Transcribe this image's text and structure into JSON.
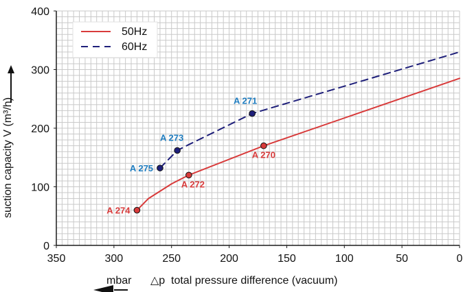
{
  "chart_data": {
    "type": "line",
    "xlim": [
      350,
      0
    ],
    "ylim": [
      0,
      400
    ],
    "x_ticks": [
      350,
      300,
      250,
      200,
      150,
      100,
      50,
      0
    ],
    "y_ticks": [
      0,
      100,
      200,
      300,
      400
    ],
    "grid": true,
    "legend_placement": "top-left",
    "series": [
      {
        "name": "50Hz",
        "style": "solid",
        "color": "#d83a3a",
        "points": [
          [
            280,
            60
          ],
          [
            270,
            80
          ],
          [
            250,
            105
          ],
          [
            235,
            120
          ],
          [
            170,
            170
          ],
          [
            0,
            285
          ]
        ]
      },
      {
        "name": "60Hz",
        "style": "dashed",
        "color": "#1e1f7a",
        "points": [
          [
            260,
            132
          ],
          [
            245,
            162
          ],
          [
            235,
            172
          ],
          [
            180,
            225
          ],
          [
            0,
            330
          ]
        ]
      }
    ],
    "markers": [
      {
        "label": "A 270",
        "x": 170,
        "y": 170,
        "color": "#d83a3a"
      },
      {
        "label": "A 271",
        "x": 180,
        "y": 225,
        "color": "#1e1f7a",
        "label_color": "#1f7dc0"
      },
      {
        "label": "A 272",
        "x": 235,
        "y": 120,
        "color": "#d83a3a"
      },
      {
        "label": "A 273",
        "x": 245,
        "y": 162,
        "color": "#1e1f7a",
        "label_color": "#1f7dc0"
      },
      {
        "label": "A 274",
        "x": 280,
        "y": 60,
        "color": "#d83a3a"
      },
      {
        "label": "A 275",
        "x": 260,
        "y": 132,
        "color": "#1e1f7a",
        "label_color": "#1f7dc0"
      }
    ],
    "ylabel": "suction capacity V (m³/h)",
    "xlabel_unit": "mbar",
    "xlabel_symbol": "△p",
    "xlabel": "total pressure difference (vacuum)"
  }
}
